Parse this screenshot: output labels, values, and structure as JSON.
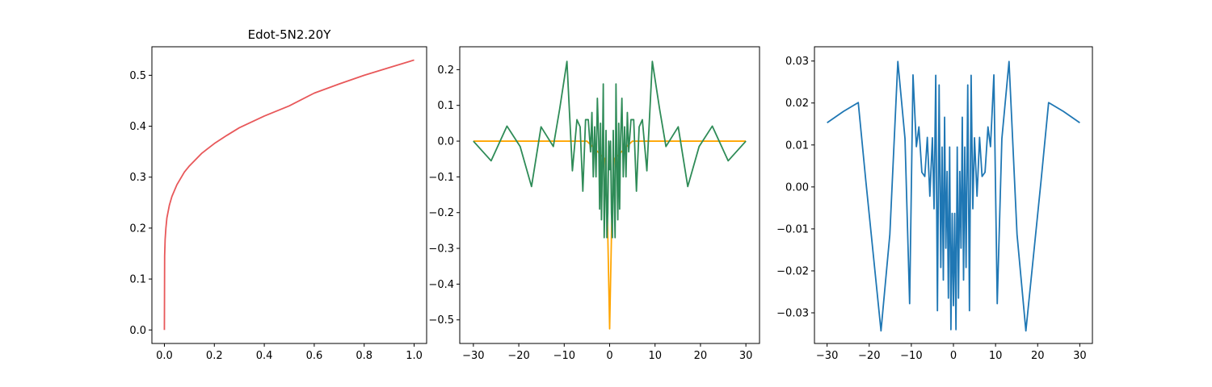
{
  "chart_data": [
    {
      "type": "line",
      "title": "Edot-5N2.20Y",
      "xlim": [
        -0.05,
        1.05
      ],
      "ylim": [
        -0.0265,
        0.556
      ],
      "x_ticks": [
        0.0,
        0.2,
        0.4,
        0.6,
        0.8,
        1.0
      ],
      "x_tick_labels": [
        "0.0",
        "0.2",
        "0.4",
        "0.6",
        "0.8",
        "1.0"
      ],
      "y_ticks": [
        0.0,
        0.1,
        0.2,
        0.3,
        0.4,
        0.5
      ],
      "y_tick_labels": [
        "0.0",
        "0.1",
        "0.2",
        "0.3",
        "0.4",
        "0.5"
      ],
      "series": [
        {
          "color": "#e8585a",
          "x": [
            0,
            0.001,
            0.003,
            0.006,
            0.01,
            0.02,
            0.03,
            0.05,
            0.08,
            0.1,
            0.15,
            0.2,
            0.25,
            0.3,
            0.4,
            0.5,
            0.6,
            0.7,
            0.8,
            0.9,
            1.0
          ],
          "y": [
            0.0,
            0.145,
            0.178,
            0.2,
            0.22,
            0.245,
            0.262,
            0.285,
            0.31,
            0.322,
            0.347,
            0.366,
            0.382,
            0.397,
            0.42,
            0.44,
            0.465,
            0.483,
            0.5,
            0.515,
            0.53
          ]
        }
      ]
    },
    {
      "type": "line",
      "xlim": [
        -33,
        33
      ],
      "ylim": [
        -0.566,
        0.264
      ],
      "x_ticks": [
        -30,
        -20,
        -10,
        0,
        10,
        20,
        30
      ],
      "x_tick_labels": [
        "−30",
        "−20",
        "−10",
        "0",
        "10",
        "20",
        "30"
      ],
      "y_ticks": [
        -0.5,
        -0.4,
        -0.3,
        -0.2,
        -0.1,
        0.0,
        0.1,
        0.2
      ],
      "y_tick_labels": [
        "−0.5",
        "−0.4",
        "−0.3",
        "−0.2",
        "−0.1",
        "0.0",
        "0.1",
        "0.2"
      ],
      "series": [
        {
          "color": "#ffa500",
          "x": [
            -30,
            -5,
            -1,
            -0.5,
            0,
            0.5,
            1,
            5,
            30
          ],
          "y": [
            0.0,
            0.0,
            -0.05,
            -0.2,
            -0.525,
            -0.2,
            -0.05,
            0.0,
            0.0
          ]
        },
        {
          "color": "#2e8b57",
          "x": [
            -30,
            -26.1,
            -22.6,
            -19.7,
            -17.2,
            -15.1,
            -12.4,
            -11,
            -9.4,
            -8.2,
            -7.2,
            -6.5,
            -5.9,
            -5.3,
            -4.7,
            -4.2,
            -3.9,
            -3.6,
            -3.3,
            -3,
            -2.7,
            -2.4,
            -2.2,
            -2.0,
            -1.8,
            -1.6,
            -1.4,
            -1.2,
            -1.0,
            -0.8,
            -0.6,
            -0.4,
            -0.2,
            0,
            0.2,
            0.4,
            0.6,
            0.8,
            1.0,
            1.2,
            1.4,
            1.6,
            1.8,
            2.0,
            2.2,
            2.4,
            2.7,
            3,
            3.3,
            3.6,
            3.9,
            4.2,
            4.7,
            5.3,
            5.9,
            6.5,
            7.2,
            8.2,
            9.4,
            11,
            12.4,
            15.1,
            17.2,
            19.7,
            22.6,
            26.1,
            30
          ],
          "y": [
            0.0,
            -0.055,
            0.042,
            -0.015,
            -0.127,
            0.04,
            -0.015,
            0.09,
            0.223,
            -0.083,
            0.06,
            0.04,
            -0.14,
            0.06,
            0.06,
            -0.03,
            0.08,
            -0.1,
            0.04,
            -0.1,
            0.12,
            0.0,
            -0.19,
            0.05,
            -0.22,
            -0.06,
            0.16,
            -0.27,
            -0.15,
            0.03,
            -0.27,
            -0.2,
            0.0,
            -0.08,
            0.0,
            -0.2,
            -0.27,
            0.03,
            -0.15,
            -0.27,
            0.16,
            -0.06,
            -0.22,
            0.05,
            -0.19,
            0.0,
            0.12,
            -0.1,
            0.04,
            -0.1,
            0.08,
            -0.03,
            0.06,
            0.06,
            -0.14,
            0.04,
            0.06,
            -0.083,
            0.223,
            0.09,
            -0.015,
            0.04,
            -0.127,
            -0.015,
            0.042,
            -0.055,
            0.0
          ]
        }
      ]
    },
    {
      "type": "line",
      "xlim": [
        -33,
        33
      ],
      "ylim": [
        -0.0373,
        0.0334
      ],
      "x_ticks": [
        -30,
        -20,
        -10,
        0,
        10,
        20,
        30
      ],
      "x_tick_labels": [
        "−30",
        "−20",
        "−10",
        "0",
        "10",
        "20",
        "30"
      ],
      "y_ticks": [
        -0.03,
        -0.02,
        -0.01,
        0.0,
        0.01,
        0.02,
        0.03
      ],
      "y_tick_labels": [
        "−0.03",
        "−0.02",
        "−0.01",
        "0.00",
        "0.01",
        "0.02",
        "0.03"
      ],
      "series": [
        {
          "color": "#1f77b4",
          "x": [
            -30,
            -26.1,
            -22.6,
            -20.8,
            -17.2,
            -15.1,
            -13.2,
            -11.5,
            -10.4,
            -9.6,
            -8.8,
            -8.2,
            -7.5,
            -6.8,
            -6.2,
            -5.6,
            -5.0,
            -4.6,
            -4.2,
            -3.8,
            -3.4,
            -3.0,
            -2.7,
            -2.4,
            -2.1,
            -1.8,
            -1.5,
            -1.2,
            -0.9,
            -0.6,
            -0.3,
            0,
            0.3,
            0.6,
            0.9,
            1.2,
            1.5,
            1.8,
            2.1,
            2.4,
            2.7,
            3.0,
            3.4,
            3.8,
            4.2,
            4.6,
            5.0,
            5.6,
            6.2,
            6.8,
            7.5,
            8.2,
            8.8,
            9.6,
            10.4,
            11.5,
            13.2,
            15.1,
            17.2,
            20.8,
            22.6,
            26.1,
            30
          ],
          "y": [
            0.0153,
            0.018,
            0.0201,
            0.0014,
            -0.0343,
            -0.0113,
            0.0299,
            0.0115,
            -0.0278,
            0.0267,
            0.0096,
            0.0143,
            0.0035,
            0.0025,
            0.0118,
            -0.0022,
            0.0117,
            -0.0052,
            0.0266,
            -0.0295,
            0.0243,
            -0.0192,
            0.0095,
            -0.0222,
            0.0166,
            -0.0146,
            0.0037,
            -0.0265,
            0.0095,
            -0.034,
            -0.0063,
            -0.0283,
            -0.0063,
            -0.034,
            0.0095,
            -0.0265,
            0.0037,
            -0.0146,
            0.0166,
            -0.0222,
            0.0095,
            -0.0192,
            0.0243,
            -0.0295,
            0.0266,
            -0.0052,
            0.0117,
            -0.0022,
            0.0118,
            0.0025,
            0.0035,
            0.0143,
            0.0096,
            0.0267,
            -0.0278,
            0.0115,
            0.0299,
            -0.0113,
            -0.0343,
            0.0014,
            0.0201,
            0.018,
            0.0153
          ]
        }
      ]
    }
  ]
}
